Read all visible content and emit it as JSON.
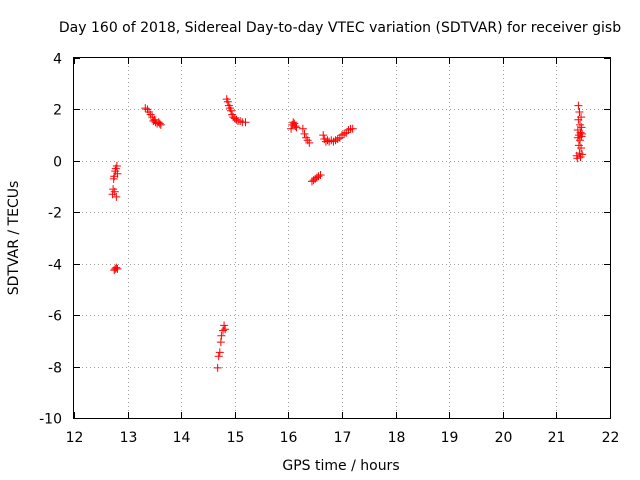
{
  "chart_data": {
    "type": "scatter",
    "title": "Day 160 of 2018, Sidereal Day-to-day VTEC variation (SDTVAR) for receiver gisb",
    "xlabel": "GPS time / hours",
    "ylabel": "SDTVAR / TECUs",
    "xlim": [
      12,
      22
    ],
    "ylim": [
      -10,
      4
    ],
    "xticks": [
      12,
      13,
      14,
      15,
      16,
      17,
      18,
      19,
      20,
      21,
      22
    ],
    "yticks": [
      -10,
      -8,
      -6,
      -4,
      -2,
      0,
      2,
      4
    ],
    "grid": true,
    "marker": "plus",
    "color": "#ff0000",
    "series": [
      {
        "name": "SDTVAR",
        "points": [
          [
            12.72,
            -1.3
          ],
          [
            12.73,
            -1.1
          ],
          [
            12.74,
            -0.7
          ],
          [
            12.75,
            -0.6
          ],
          [
            12.76,
            -1.2
          ],
          [
            12.77,
            -0.4
          ],
          [
            12.78,
            -0.3
          ],
          [
            12.79,
            -1.4
          ],
          [
            12.8,
            -0.2
          ],
          [
            12.81,
            -0.5
          ],
          [
            12.75,
            -4.25
          ],
          [
            12.77,
            -4.2
          ],
          [
            12.79,
            -4.15
          ],
          [
            12.81,
            -4.2
          ],
          [
            13.33,
            2.05
          ],
          [
            13.37,
            2.0
          ],
          [
            13.4,
            1.9
          ],
          [
            13.43,
            1.8
          ],
          [
            13.46,
            1.7
          ],
          [
            13.48,
            1.55
          ],
          [
            13.5,
            1.6
          ],
          [
            13.52,
            1.5
          ],
          [
            13.55,
            1.45
          ],
          [
            13.58,
            1.5
          ],
          [
            13.6,
            1.45
          ],
          [
            13.62,
            1.4
          ],
          [
            14.68,
            -8.05
          ],
          [
            14.7,
            -7.6
          ],
          [
            14.72,
            -7.45
          ],
          [
            14.74,
            -7.05
          ],
          [
            14.75,
            -6.8
          ],
          [
            14.78,
            -6.6
          ],
          [
            14.8,
            -6.4
          ],
          [
            14.82,
            -6.55
          ],
          [
            14.85,
            2.4
          ],
          [
            14.87,
            2.3
          ],
          [
            14.89,
            2.15
          ],
          [
            14.91,
            2.05
          ],
          [
            14.93,
            1.95
          ],
          [
            14.95,
            1.8
          ],
          [
            14.97,
            1.7
          ],
          [
            15.0,
            1.65
          ],
          [
            15.03,
            1.6
          ],
          [
            15.06,
            1.55
          ],
          [
            15.1,
            1.55
          ],
          [
            15.14,
            1.5
          ],
          [
            15.2,
            1.5
          ],
          [
            16.05,
            1.25
          ],
          [
            16.07,
            1.4
          ],
          [
            16.09,
            1.5
          ],
          [
            16.11,
            1.45
          ],
          [
            16.13,
            1.35
          ],
          [
            16.15,
            1.3
          ],
          [
            16.27,
            1.25
          ],
          [
            16.3,
            1.05
          ],
          [
            16.33,
            0.9
          ],
          [
            16.36,
            0.8
          ],
          [
            16.39,
            0.7
          ],
          [
            16.44,
            -0.8
          ],
          [
            16.47,
            -0.75
          ],
          [
            16.5,
            -0.7
          ],
          [
            16.53,
            -0.65
          ],
          [
            16.56,
            -0.6
          ],
          [
            16.6,
            -0.55
          ],
          [
            16.65,
            1.0
          ],
          [
            16.67,
            0.85
          ],
          [
            16.7,
            0.75
          ],
          [
            16.73,
            0.8
          ],
          [
            16.76,
            0.75
          ],
          [
            16.8,
            0.8
          ],
          [
            16.84,
            0.75
          ],
          [
            16.88,
            0.8
          ],
          [
            16.92,
            0.85
          ],
          [
            16.96,
            0.9
          ],
          [
            17.0,
            1.0
          ],
          [
            17.04,
            1.05
          ],
          [
            17.08,
            1.1
          ],
          [
            17.12,
            1.2
          ],
          [
            17.16,
            1.25
          ],
          [
            17.2,
            1.25
          ],
          [
            21.38,
            0.2
          ],
          [
            21.39,
            0.1
          ],
          [
            21.4,
            0.9
          ],
          [
            21.4,
            1.2
          ],
          [
            21.41,
            1.6
          ],
          [
            21.41,
            2.15
          ],
          [
            21.42,
            0.6
          ],
          [
            21.42,
            1.0
          ],
          [
            21.43,
            1.9
          ],
          [
            21.43,
            0.3
          ],
          [
            21.44,
            1.4
          ],
          [
            21.44,
            0.8
          ],
          [
            21.45,
            1.1
          ],
          [
            21.45,
            0.15
          ],
          [
            21.46,
            1.7
          ],
          [
            21.46,
            0.5
          ],
          [
            21.47,
            1.3
          ],
          [
            21.47,
            0.95
          ],
          [
            21.48,
            0.25
          ],
          [
            21.48,
            1.05
          ]
        ]
      }
    ]
  }
}
